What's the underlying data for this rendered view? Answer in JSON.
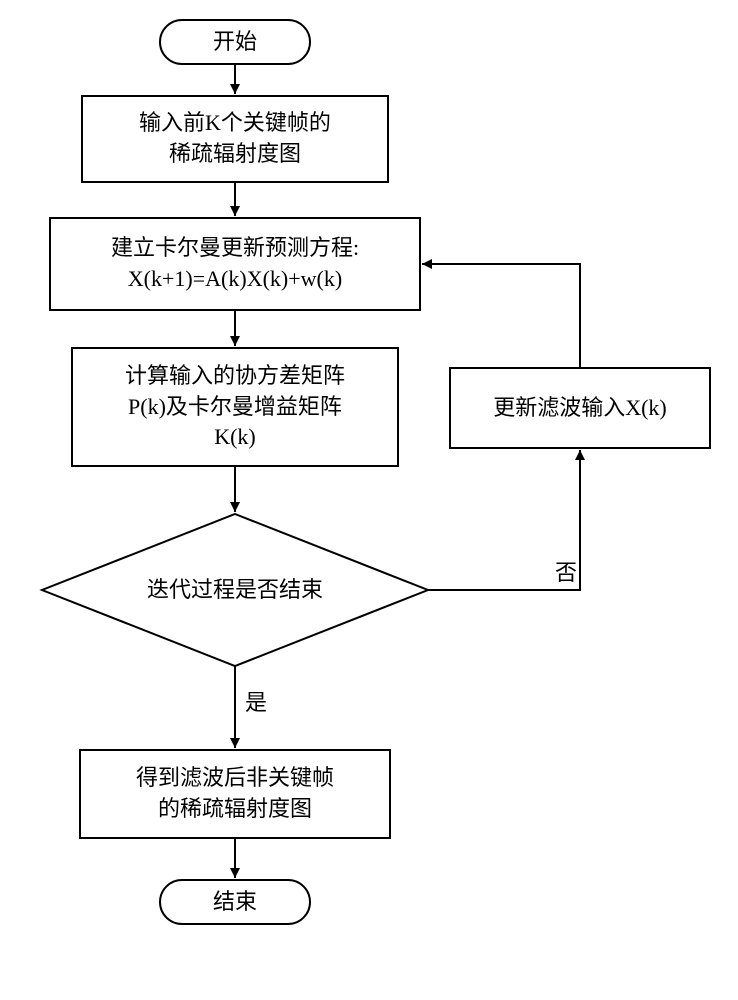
{
  "flowchart": {
    "type": "flowchart",
    "background_color": "#ffffff",
    "stroke_color": "#000000",
    "stroke_width": 2,
    "font_size": 22,
    "arrow_size": 10,
    "nodes": {
      "start": {
        "shape": "terminator",
        "label": "开始"
      },
      "input": {
        "shape": "rect",
        "label": "输入前K个关键帧的\n稀疏辐射度图"
      },
      "kalman": {
        "shape": "rect",
        "label": "建立卡尔曼更新预测方程:\nX(k+1)=A(k)X(k)+w(k)"
      },
      "cov": {
        "shape": "rect",
        "label": "计算输入的协方差矩阵\nP(k)及卡尔曼增益矩阵\nK(k)"
      },
      "decision": {
        "shape": "diamond",
        "label": "迭代过程是否结束"
      },
      "update": {
        "shape": "rect",
        "label": "更新滤波输入X(k)"
      },
      "output": {
        "shape": "rect",
        "label": "得到滤波后非关键帧\n的稀疏辐射度图"
      },
      "end": {
        "shape": "terminator",
        "label": "结束"
      }
    },
    "edge_labels": {
      "yes": "是",
      "no": "否"
    }
  }
}
